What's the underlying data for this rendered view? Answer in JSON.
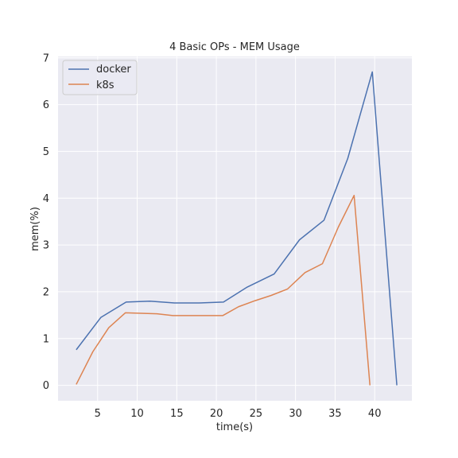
{
  "chart_data": {
    "type": "line",
    "title": "4 Basic OPs - MEM Usage",
    "xlabel": "time(s)",
    "ylabel": "mem(%)",
    "xlim": [
      0.0,
      44.7
    ],
    "ylim": [
      -0.33,
      7.03
    ],
    "xticks": [
      5,
      10,
      15,
      20,
      25,
      30,
      35,
      40
    ],
    "yticks": [
      0,
      1,
      2,
      3,
      4,
      5,
      6,
      7
    ],
    "grid": true,
    "legend": {
      "position": "top-left"
    },
    "series": [
      {
        "name": "docker",
        "color": "#4c72b0",
        "x": [
          2.3,
          5.4,
          8.6,
          11.6,
          14.7,
          17.8,
          20.9,
          23.9,
          27.3,
          30.5,
          33.6,
          36.6,
          39.7,
          42.8
        ],
        "y": [
          0.76,
          1.45,
          1.78,
          1.8,
          1.76,
          1.76,
          1.78,
          2.1,
          2.38,
          3.11,
          3.53,
          4.85,
          6.7,
          0.0
        ]
      },
      {
        "name": "k8s",
        "color": "#dd8452",
        "x": [
          2.3,
          4.4,
          6.4,
          8.5,
          10.5,
          12.5,
          14.5,
          16.6,
          18.6,
          20.8,
          22.8,
          24.9,
          26.9,
          29.0,
          31.2,
          33.4,
          35.4,
          37.4,
          39.4
        ],
        "y": [
          0.02,
          0.72,
          1.23,
          1.55,
          1.54,
          1.53,
          1.49,
          1.49,
          1.49,
          1.49,
          1.68,
          1.81,
          1.92,
          2.06,
          2.41,
          2.6,
          3.38,
          4.06,
          0.0
        ]
      }
    ]
  }
}
